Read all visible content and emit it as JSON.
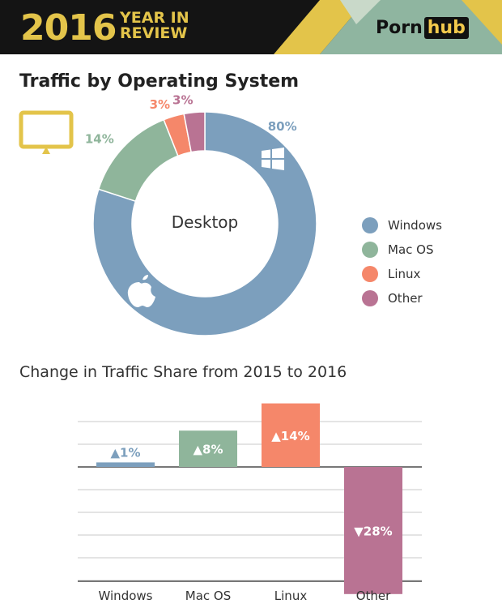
{
  "header": {
    "year": "2016",
    "year_in": "YEAR IN",
    "review": "REVIEW",
    "logo_text": "Porn",
    "logo_badge": "hub"
  },
  "colors": {
    "header_bg": "#141414",
    "gold": "#e3c44a",
    "sage": "#8fb5a0",
    "windows": "#7c9fbd",
    "macos": "#8fb59b",
    "linux": "#f5876a",
    "other": "#b97393"
  },
  "title": "Traffic by Operating System",
  "icons": [
    "monitor-icon",
    "windows-logo-icon",
    "apple-logo-icon"
  ],
  "chart_data": [
    {
      "type": "pie",
      "center_label": "Desktop",
      "slices": [
        {
          "label": "Windows",
          "value": 80,
          "text": "80%",
          "color": "#7c9fbd"
        },
        {
          "label": "Mac OS",
          "value": 14,
          "text": "14%",
          "color": "#8fb59b"
        },
        {
          "label": "Linux",
          "value": 3,
          "text": "3%",
          "color": "#f5876a"
        },
        {
          "label": "Other",
          "value": 3,
          "text": "3%",
          "color": "#b97393"
        }
      ],
      "legend": [
        "Windows",
        "Mac OS",
        "Linux",
        "Other"
      ],
      "legend_placement": "right"
    },
    {
      "type": "bar",
      "title": "Change in Traffic Share from 2015 to 2016",
      "categories": [
        "Windows",
        "Mac OS",
        "Linux",
        "Other"
      ],
      "values": [
        1,
        8,
        14,
        -28
      ],
      "labels": [
        "▲1%",
        "▲8%",
        "▲14%",
        "▼28%"
      ],
      "colors": [
        "#7c9fbd",
        "#8fb59b",
        "#f5876a",
        "#b97393"
      ],
      "grid": true,
      "gridline_step": 5
    }
  ]
}
